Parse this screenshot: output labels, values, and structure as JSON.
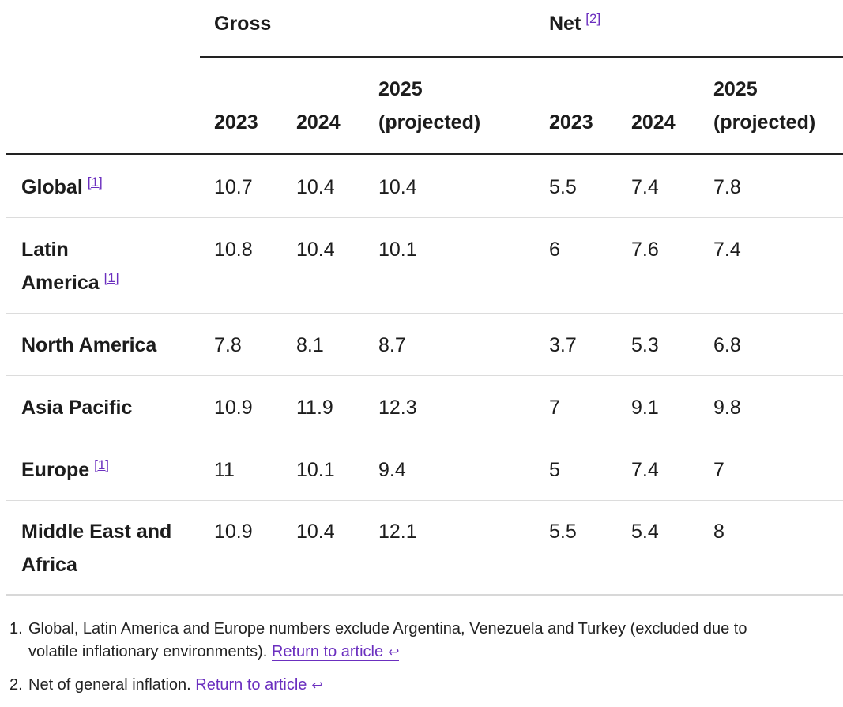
{
  "groups": {
    "gross": "Gross",
    "net": "Net",
    "net_ref": "[2]"
  },
  "columns": {
    "c2023": "2023",
    "c2024": "2024",
    "c2025_year": "2025",
    "c2025_note": "(projected)"
  },
  "rows": [
    {
      "label_1": "Global",
      "label_2": "",
      "ref": "[1]",
      "gross": [
        "10.7",
        "10.4",
        "10.4"
      ],
      "net": [
        "5.5",
        "7.4",
        "7.8"
      ]
    },
    {
      "label_1": "Latin",
      "label_2": "America",
      "ref": "[1]",
      "gross": [
        "10.8",
        "10.4",
        "10.1"
      ],
      "net": [
        "6",
        "7.6",
        "7.4"
      ]
    },
    {
      "label_1": "North America",
      "label_2": "",
      "ref": "",
      "gross": [
        "7.8",
        "8.1",
        "8.7"
      ],
      "net": [
        "3.7",
        "5.3",
        "6.8"
      ]
    },
    {
      "label_1": "Asia Pacific",
      "label_2": "",
      "ref": "",
      "gross": [
        "10.9",
        "11.9",
        "12.3"
      ],
      "net": [
        "7",
        "9.1",
        "9.8"
      ]
    },
    {
      "label_1": "Europe",
      "label_2": "",
      "ref": "[1]",
      "gross": [
        "11",
        "10.1",
        "9.4"
      ],
      "net": [
        "5",
        "7.4",
        "7"
      ]
    },
    {
      "label_1": "Middle East and",
      "label_2": "Africa",
      "ref": "",
      "gross": [
        "10.9",
        "10.4",
        "12.1"
      ],
      "net": [
        "5.5",
        "5.4",
        "8"
      ]
    }
  ],
  "notes": [
    {
      "num": "1.",
      "line_1": "Global, Latin America and Europe numbers exclude Argentina, Venezuela and Turkey (excluded due to",
      "line_2": "volatile inflationary environments).",
      "link": "Return to article",
      "icon": "return-arrow-icon",
      "icon_glyph": "↩"
    },
    {
      "num": "2.",
      "line_1": "Net of general inflation.",
      "line_2": "",
      "link": "Return to article",
      "icon": "return-arrow-icon",
      "icon_glyph": "↩"
    }
  ],
  "colors": {
    "link": "#6b2fbf",
    "text": "#1c1c1c",
    "rule": "#222222",
    "divider": "#dcdcdc"
  }
}
